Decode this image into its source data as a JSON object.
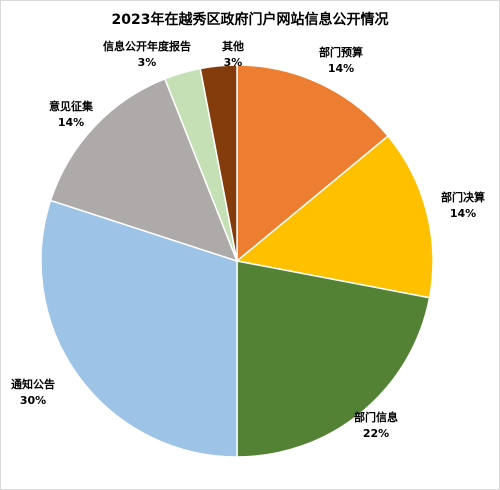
{
  "chart_data": {
    "type": "pie",
    "title": "2023年在越秀区政府门户网站信息公开情况",
    "slices": [
      {
        "label": "部门预算",
        "value": 14,
        "percent_label": "14%",
        "color": "#ED7D31"
      },
      {
        "label": "部门决算",
        "value": 14,
        "percent_label": "14%",
        "color": "#FFC000"
      },
      {
        "label": "部门信息",
        "value": 22,
        "percent_label": "22%",
        "color": "#548235"
      },
      {
        "label": "通知公告",
        "value": 30,
        "percent_label": "30%",
        "color": "#9DC3E6"
      },
      {
        "label": "意见征集",
        "value": 14,
        "percent_label": "14%",
        "color": "#AEAAAA"
      },
      {
        "label": "信息公开年度报告",
        "value": 3,
        "percent_label": "3%",
        "color": "#C5E0B4"
      },
      {
        "label": "其他",
        "value": 3,
        "percent_label": "3%",
        "color": "#843C0C"
      }
    ],
    "start_angle_deg": 0,
    "direction": "clockwise",
    "legend": "none"
  }
}
